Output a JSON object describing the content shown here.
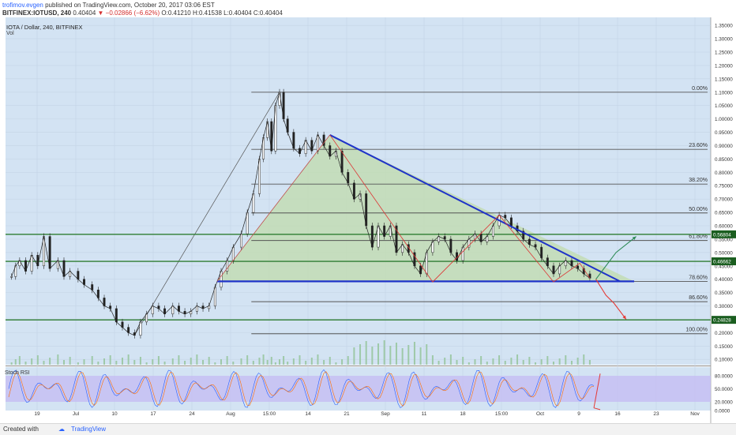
{
  "header": {
    "author": "trofimov.evgen",
    "published_text": "published on TradingView.com, October 20, 2017 03:06 EST",
    "symbol": "BITFINEX:IOTUSD, 240",
    "last": "0.40404",
    "change": "▼ −0.02866 (−6.62%)",
    "ohlc": "O:0.41210 H:0.41538 L:0.40404 C:0.40404"
  },
  "legend": {
    "symbol_title": "IOTA / Dollar, 240, BITFINEX",
    "volume_label": "Vol",
    "stoch_label": "Stoch RSI"
  },
  "footer": {
    "created_with": "Created with",
    "brand": "TradingView"
  },
  "colors": {
    "plot_bg": "#d3e3f3",
    "triangle_fill": "#c2dcb4",
    "triangle_edge": "#1f33c9",
    "green_line": "#2e7d32",
    "fib_line": "#555555",
    "stoch_band": "#c6bdf2",
    "price_badge": "#1b5e20",
    "up_arrow": "#2e8b57",
    "down_arrow": "#e53935"
  },
  "chart_data": {
    "type": "candlestick",
    "y_axis": {
      "ticks": [
        "1.35000",
        "1.30000",
        "1.25000",
        "1.20000",
        "1.15000",
        "1.10000",
        "1.05000",
        "1.00000",
        "0.95000",
        "0.90000",
        "0.85000",
        "0.80000",
        "0.75000",
        "0.70000",
        "0.65000",
        "0.60000",
        "0.55000",
        "0.50000",
        "0.45000",
        "0.40000",
        "0.35000",
        "0.30000",
        "0.25000",
        "0.20000",
        "0.15000",
        "0.10000"
      ],
      "ylim": [
        0.08,
        1.38
      ]
    },
    "x_axis": {
      "ticks": [
        "19",
        "Jul",
        "10",
        "17",
        "24",
        "Aug",
        "15:00",
        "14",
        "21",
        "Sep",
        "11",
        "18",
        "15:00",
        "Oct",
        "9",
        "16",
        "23",
        "Nov"
      ]
    },
    "fibonacci": [
      {
        "label": "0.00%",
        "value": 1.1
      },
      {
        "label": "23.60%",
        "value": 0.886
      },
      {
        "label": "38.20%",
        "value": 0.756
      },
      {
        "label": "50.00%",
        "value": 0.648
      },
      {
        "label": "61.80%",
        "value": 0.545
      },
      {
        "label": "78.60%",
        "value": 0.392
      },
      {
        "label": "86.60%",
        "value": 0.316
      },
      {
        "label": "100.00%",
        "value": 0.196
      }
    ],
    "horizontal_levels": [
      {
        "label": "0.56804",
        "value": 0.568
      },
      {
        "label": "0.46662",
        "value": 0.467
      },
      {
        "label": "0.24828",
        "value": 0.248
      }
    ],
    "price_path": [
      [
        0.53,
        0.41
      ],
      [
        0.55,
        0.45
      ],
      [
        0.57,
        0.47
      ],
      [
        0.6,
        0.43
      ],
      [
        0.63,
        0.49
      ],
      [
        0.66,
        0.45
      ],
      [
        0.69,
        0.56
      ],
      [
        0.72,
        0.44
      ],
      [
        0.76,
        0.47
      ],
      [
        0.79,
        0.41
      ],
      [
        0.82,
        0.43
      ],
      [
        0.86,
        0.4
      ],
      [
        0.89,
        0.38
      ],
      [
        0.93,
        0.36
      ],
      [
        0.96,
        0.33
      ],
      [
        0.99,
        0.3
      ],
      [
        1.02,
        0.29
      ],
      [
        1.05,
        0.24
      ],
      [
        1.08,
        0.22
      ],
      [
        1.11,
        0.2
      ],
      [
        1.14,
        0.19
      ],
      [
        1.17,
        0.24
      ],
      [
        1.2,
        0.27
      ],
      [
        1.23,
        0.3
      ],
      [
        1.26,
        0.29
      ],
      [
        1.29,
        0.27
      ],
      [
        1.33,
        0.3
      ],
      [
        1.36,
        0.28
      ],
      [
        1.39,
        0.27
      ],
      [
        1.42,
        0.28
      ],
      [
        1.45,
        0.3
      ],
      [
        1.48,
        0.29
      ],
      [
        1.51,
        0.3
      ],
      [
        1.54,
        0.37
      ],
      [
        1.57,
        0.43
      ],
      [
        1.6,
        0.47
      ],
      [
        1.63,
        0.52
      ],
      [
        1.67,
        0.57
      ],
      [
        1.7,
        0.65
      ],
      [
        1.73,
        0.72
      ],
      [
        1.76,
        0.85
      ],
      [
        1.78,
        0.93
      ],
      [
        1.8,
        0.99
      ],
      [
        1.82,
        0.88
      ],
      [
        1.84,
        1.05
      ],
      [
        1.86,
        1.1
      ],
      [
        1.88,
        1.0
      ],
      [
        1.9,
        0.95
      ],
      [
        1.93,
        0.89
      ],
      [
        1.96,
        0.87
      ],
      [
        1.99,
        0.92
      ],
      [
        2.02,
        0.88
      ],
      [
        2.05,
        0.94
      ],
      [
        2.08,
        0.9
      ],
      [
        2.11,
        0.86
      ],
      [
        2.14,
        0.88
      ],
      [
        2.17,
        0.8
      ],
      [
        2.2,
        0.76
      ],
      [
        2.23,
        0.7
      ],
      [
        2.26,
        0.72
      ],
      [
        2.29,
        0.6
      ],
      [
        2.32,
        0.52
      ],
      [
        2.35,
        0.6
      ],
      [
        2.38,
        0.56
      ],
      [
        2.41,
        0.6
      ],
      [
        2.44,
        0.5
      ],
      [
        2.47,
        0.53
      ],
      [
        2.5,
        0.5
      ],
      [
        2.53,
        0.45
      ],
      [
        2.56,
        0.42
      ],
      [
        2.59,
        0.5
      ],
      [
        2.62,
        0.54
      ],
      [
        2.65,
        0.56
      ],
      [
        2.68,
        0.55
      ],
      [
        2.71,
        0.5
      ],
      [
        2.74,
        0.47
      ],
      [
        2.77,
        0.52
      ],
      [
        2.8,
        0.55
      ],
      [
        2.83,
        0.57
      ],
      [
        2.86,
        0.54
      ],
      [
        2.89,
        0.56
      ],
      [
        2.92,
        0.6
      ],
      [
        2.95,
        0.64
      ],
      [
        2.98,
        0.63
      ],
      [
        3.01,
        0.6
      ],
      [
        3.04,
        0.58
      ],
      [
        3.07,
        0.55
      ],
      [
        3.1,
        0.53
      ],
      [
        3.13,
        0.52
      ],
      [
        3.16,
        0.48
      ],
      [
        3.19,
        0.45
      ],
      [
        3.22,
        0.42
      ],
      [
        3.25,
        0.45
      ],
      [
        3.28,
        0.47
      ],
      [
        3.31,
        0.45
      ],
      [
        3.34,
        0.44
      ],
      [
        3.37,
        0.42
      ],
      [
        3.4,
        0.404
      ]
    ],
    "triangle": {
      "apex": [
        2.11,
        0.94
      ],
      "left": [
        1.55,
        0.392
      ],
      "right": [
        3.62,
        0.392
      ]
    },
    "stoch_rsi": {
      "ylim": [
        0,
        100
      ],
      "band": [
        20,
        80
      ],
      "ticks": [
        "80.0000",
        "50.0000",
        "20.0000",
        "0.0000"
      ]
    }
  }
}
